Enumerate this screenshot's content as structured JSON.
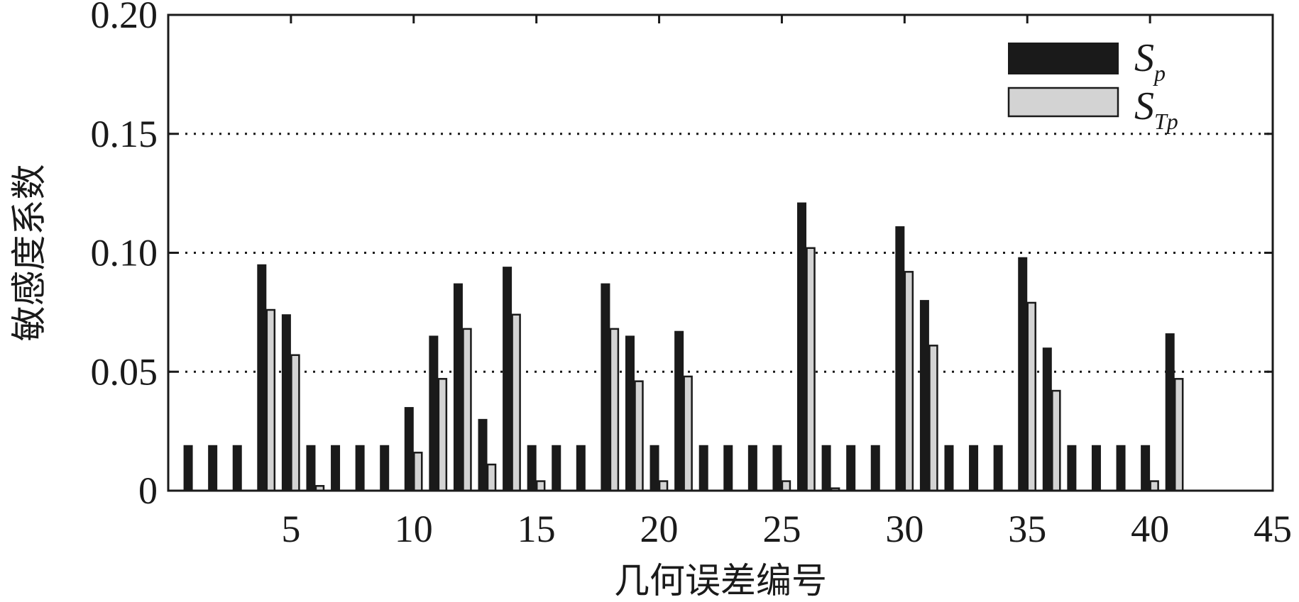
{
  "chart_data": {
    "type": "bar",
    "xlabel": "几何误差编号",
    "ylabel": "敏感度系数",
    "xlim": [
      0,
      45
    ],
    "ylim": [
      0,
      0.2
    ],
    "x_ticks": [
      5,
      10,
      15,
      20,
      25,
      30,
      35,
      40,
      45
    ],
    "y_ticks": [
      0,
      0.05,
      0.1,
      0.15,
      0.2
    ],
    "y_tick_labels": [
      "0",
      "0.05",
      "0.10",
      "0.15",
      "0.20"
    ],
    "grid": "dotted horizontal",
    "legend_position": "top-right",
    "x": [
      1,
      2,
      3,
      4,
      5,
      6,
      7,
      8,
      9,
      10,
      11,
      12,
      13,
      14,
      15,
      16,
      17,
      18,
      19,
      20,
      21,
      22,
      23,
      24,
      25,
      26,
      27,
      28,
      29,
      30,
      31,
      32,
      33,
      34,
      35,
      36,
      37,
      38,
      39,
      40,
      41
    ],
    "series": [
      {
        "name": "S",
        "subscript": "p",
        "color": "#1a1a1a",
        "values": [
          0.019,
          0.019,
          0.019,
          0.095,
          0.074,
          0.019,
          0.019,
          0.019,
          0.019,
          0.035,
          0.065,
          0.087,
          0.03,
          0.094,
          0.019,
          0.019,
          0.019,
          0.087,
          0.065,
          0.019,
          0.067,
          0.019,
          0.019,
          0.019,
          0.019,
          0.121,
          0.019,
          0.019,
          0.019,
          0.111,
          0.08,
          0.019,
          0.019,
          0.019,
          0.098,
          0.06,
          0.019,
          0.019,
          0.019,
          0.019,
          0.066
        ]
      },
      {
        "name": "S",
        "subscript": "Tp",
        "color": "#d3d3d3",
        "values": [
          0,
          0,
          0,
          0.076,
          0.057,
          0.002,
          0,
          0,
          0,
          0.016,
          0.047,
          0.068,
          0.011,
          0.074,
          0.004,
          0,
          0,
          0.068,
          0.046,
          0.004,
          0.048,
          0,
          0,
          0,
          0.004,
          0.102,
          0.001,
          0,
          0,
          0.092,
          0.061,
          0,
          0,
          0,
          0.079,
          0.042,
          0,
          0,
          0,
          0.004,
          0.047
        ]
      }
    ]
  }
}
